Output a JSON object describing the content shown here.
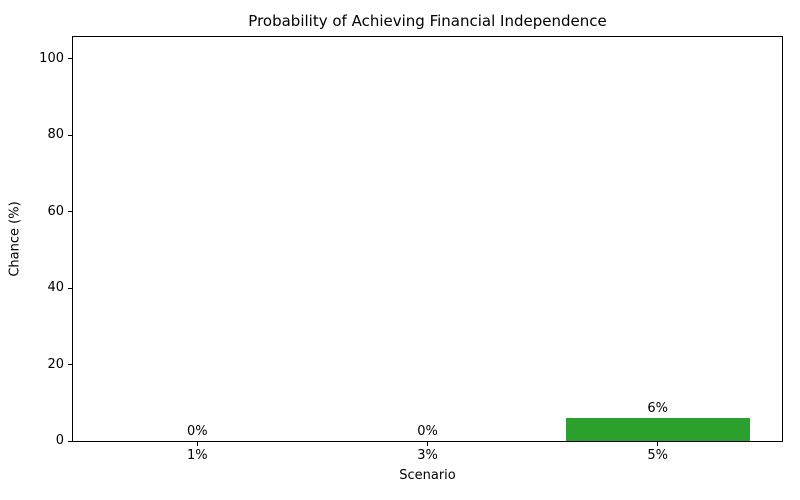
{
  "chart_data": {
    "type": "bar",
    "title": "Probability of Achieving Financial Independence",
    "xlabel": "Scenario",
    "ylabel": "Chance (%)",
    "categories": [
      "1%",
      "3%",
      "5%"
    ],
    "values": [
      0,
      0,
      6
    ],
    "bar_labels": [
      "0%",
      "0%",
      "6%"
    ],
    "yticks": [
      0,
      20,
      40,
      60,
      80,
      100
    ],
    "ylim": [
      0,
      105.7
    ],
    "xlim": [
      -0.54,
      2.54
    ],
    "bar_width_fraction": 0.8,
    "bar_color": "#2ca02c",
    "text_color": "#000000",
    "background_color": "#ffffff",
    "grid": false,
    "legend_position": "none"
  }
}
